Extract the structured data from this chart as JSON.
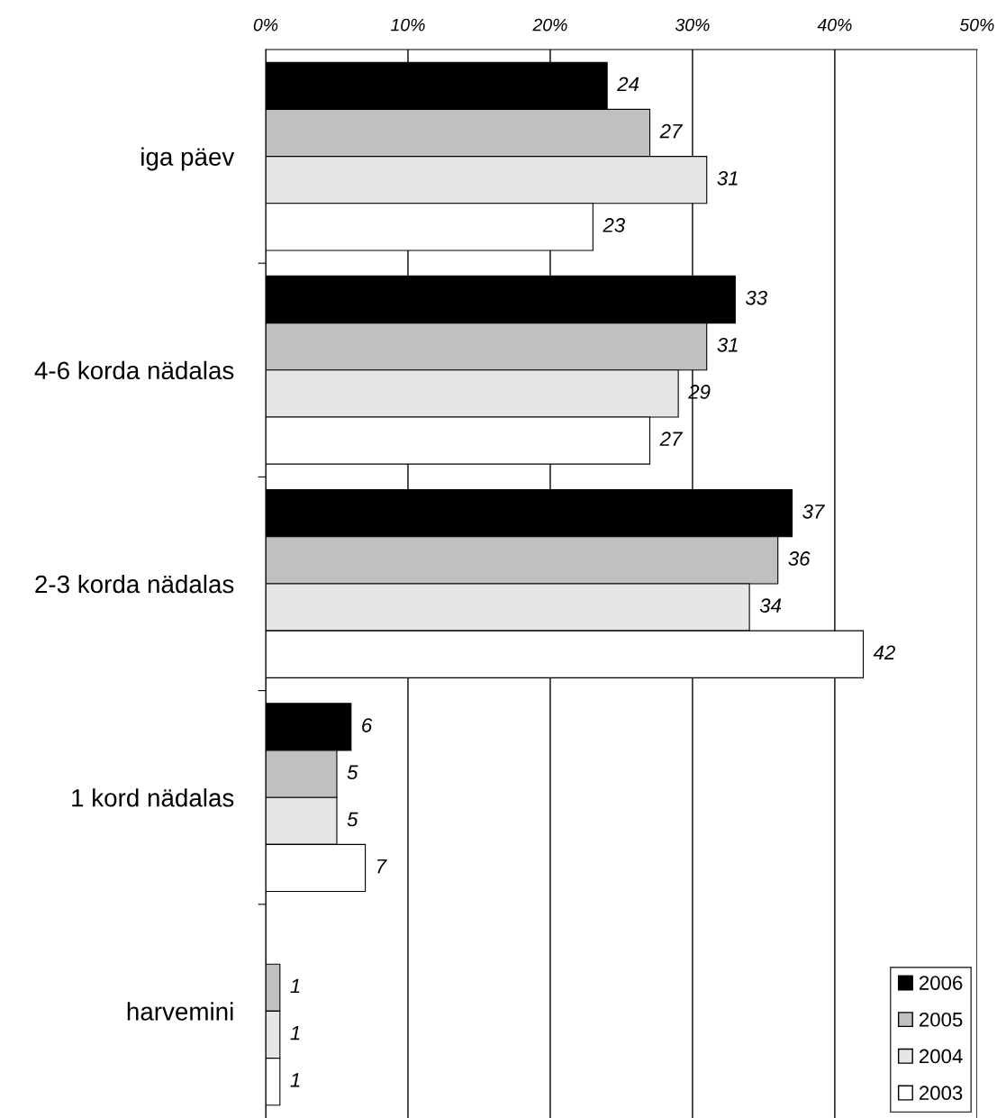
{
  "chart_data": {
    "type": "bar",
    "orientation": "horizontal",
    "categories": [
      "iga päev",
      "4-6 korda nädalas",
      "2-3 korda nädalas",
      "1 kord nädalas",
      "harvemini"
    ],
    "series": [
      {
        "name": "2006",
        "color": "#000000",
        "values": [
          24,
          33,
          37,
          6,
          null
        ]
      },
      {
        "name": "2005",
        "color": "#c0c0c0",
        "values": [
          27,
          31,
          36,
          5,
          1
        ]
      },
      {
        "name": "2004",
        "color": "#e6e6e6",
        "values": [
          31,
          29,
          34,
          5,
          1
        ]
      },
      {
        "name": "2003",
        "color": "#ffffff",
        "values": [
          23,
          27,
          42,
          7,
          1
        ]
      }
    ],
    "xlim": [
      0,
      50
    ],
    "xticks": [
      {
        "value": 0,
        "label": "0%"
      },
      {
        "value": 10,
        "label": "10%"
      },
      {
        "value": 20,
        "label": "20%"
      },
      {
        "value": 30,
        "label": "30%"
      },
      {
        "value": 40,
        "label": "40%"
      },
      {
        "value": 50,
        "label": "50%"
      }
    ],
    "grid": "x",
    "legend": "bottom right",
    "data_labels": true
  }
}
